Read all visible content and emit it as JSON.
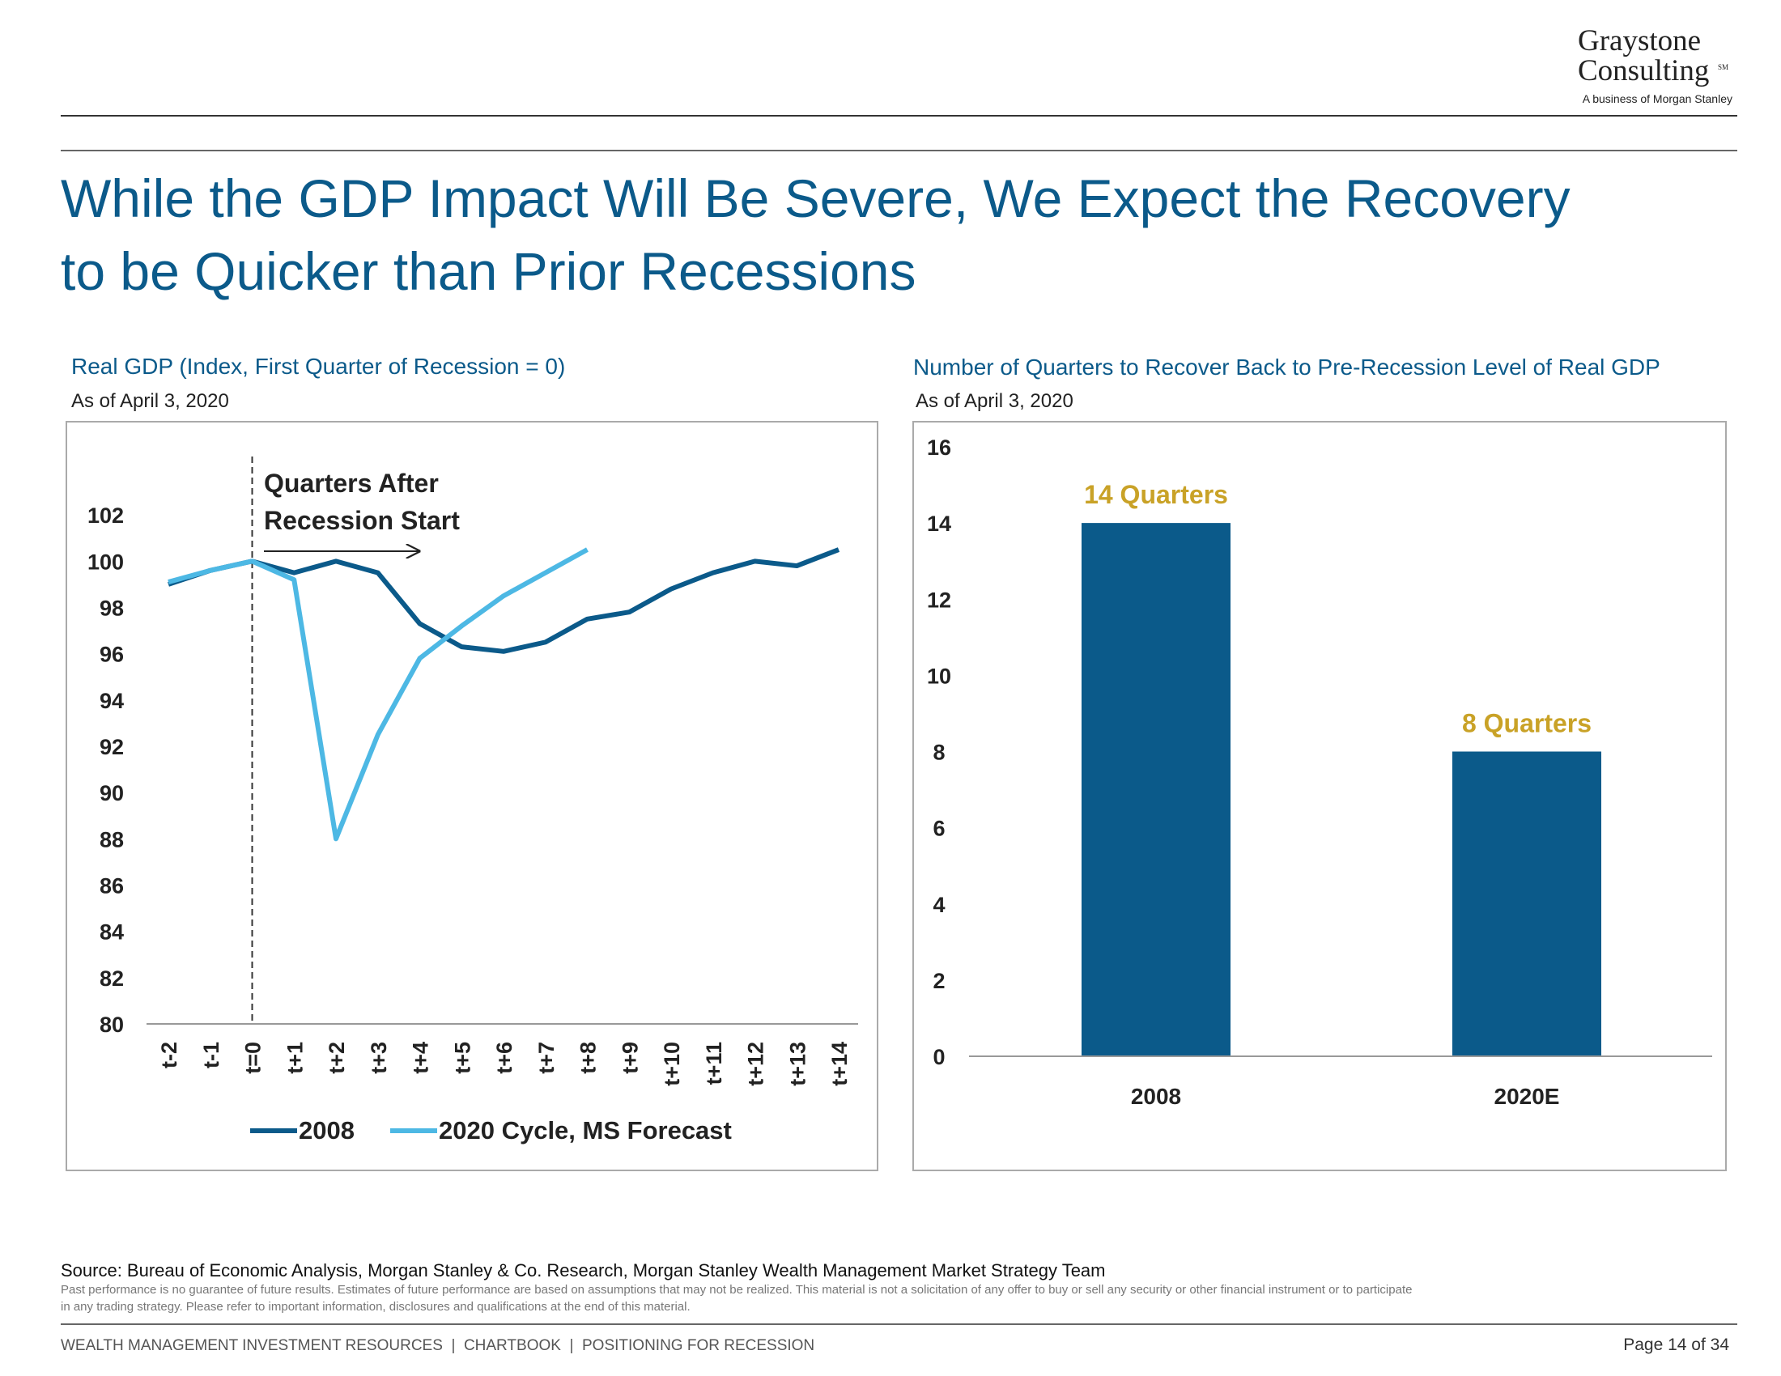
{
  "header": {
    "logo": {
      "line1": "Graystone",
      "line2": "Consulting",
      "mark": "SM",
      "tagline": "A business of Morgan Stanley"
    },
    "title": [
      "While the GDP Impact Will Be Severe, We Expect the Recovery",
      "to be Quicker than Prior Recessions"
    ]
  },
  "chart_data": [
    {
      "type": "line",
      "title": "Real GDP (Index, First Quarter of Recession = 0)",
      "subtitle": "As of April 3, 2020",
      "categories": [
        "t-2",
        "t-1",
        "t=0",
        "t+1",
        "t+2",
        "t+3",
        "t+4",
        "t+5",
        "t+6",
        "t+7",
        "t+8",
        "t+9",
        "t+10",
        "t+11",
        "t+12",
        "t+13",
        "t+14"
      ],
      "series": [
        {
          "name": "2008",
          "color": "#0b5a8a",
          "values": [
            99,
            99.6,
            100,
            99.5,
            100,
            99.5,
            97.3,
            96.3,
            96.1,
            96.5,
            97.5,
            97.8,
            98.8,
            99.5,
            100,
            99.8,
            100.5
          ]
        },
        {
          "name": "2020 Cycle, MS Forecast",
          "color": "#4db8e4",
          "values": [
            99.1,
            99.6,
            100,
            99.2,
            88,
            92.5,
            95.8,
            97.2,
            98.5,
            99.5,
            100.5,
            null,
            null,
            null,
            null,
            null,
            null
          ]
        }
      ],
      "ylim": [
        80,
        104
      ],
      "yticks": [
        80,
        82,
        84,
        86,
        88,
        90,
        92,
        94,
        96,
        98,
        100,
        102
      ],
      "vline_category": "t=0",
      "annotation": [
        "Quarters After",
        "Recession Start"
      ],
      "legend": "bottom"
    },
    {
      "type": "bar",
      "title": "Number of Quarters to Recover Back to Pre-Recession Level of Real GDP",
      "subtitle": "As of April 3, 2020",
      "categories": [
        "2008",
        "2020E"
      ],
      "values": [
        14,
        8
      ],
      "value_labels": [
        "14 Quarters",
        "8 Quarters"
      ],
      "color": "#0b5a8a",
      "label_color": "#c9a227",
      "ylim": [
        0,
        16
      ],
      "yticks": [
        0,
        2,
        4,
        6,
        8,
        10,
        12,
        14,
        16
      ]
    }
  ],
  "footer": {
    "source": "Source: Bureau of Economic Analysis, Morgan Stanley & Co. Research, Morgan Stanley Wealth Management Market Strategy Team",
    "disclaimer": [
      "Past performance is no guarantee of future results. Estimates of future performance are based on assumptions that may not be realized. This material is not a solicitation of any offer to buy or sell any security or other financial instrument or to participate",
      "in any trading strategy. Please refer to important information, disclosures and qualifications at the end of this material."
    ],
    "section": "WEALTH MANAGEMENT INVESTMENT RESOURCES  |  CHARTBOOK  |  POSITIONING FOR RECESSION",
    "page": "Page 14 of 34"
  }
}
